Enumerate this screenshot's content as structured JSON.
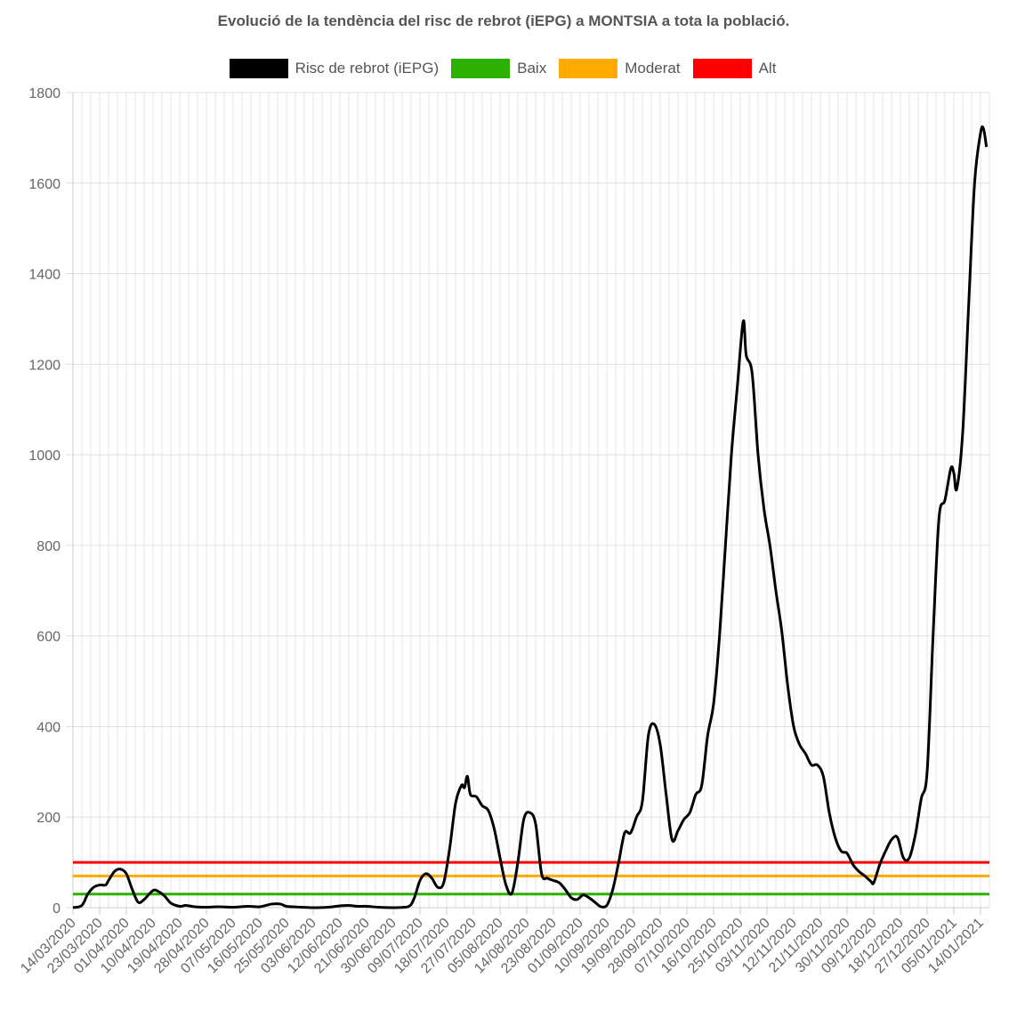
{
  "chart_data": {
    "type": "line",
    "title": "Evolució de la tendència del risc de rebrot (iEPG) a MONTSIA a tota la població.",
    "xlabel": "",
    "ylabel": "",
    "ylim": [
      0,
      1800
    ],
    "yticks": [
      0,
      200,
      400,
      600,
      800,
      1000,
      1200,
      1400,
      1600,
      1800
    ],
    "grid": true,
    "legend_position": "top",
    "x_start": "14/03/2020",
    "x_end": "17/01/2021",
    "xticks": [
      "14/03/2020",
      "23/03/2020",
      "01/04/2020",
      "10/04/2020",
      "19/04/2020",
      "28/04/2020",
      "07/05/2020",
      "16/05/2020",
      "25/05/2020",
      "03/06/2020",
      "12/06/2020",
      "21/06/2020",
      "30/06/2020",
      "09/07/2020",
      "18/07/2020",
      "27/07/2020",
      "05/08/2020",
      "14/08/2020",
      "23/08/2020",
      "01/09/2020",
      "10/09/2020",
      "19/09/2020",
      "28/09/2020",
      "07/10/2020",
      "16/10/2020",
      "25/10/2020",
      "03/11/2020",
      "12/11/2020",
      "21/11/2020",
      "30/11/2020",
      "09/12/2020",
      "18/12/2020",
      "27/12/2020",
      "05/01/2021",
      "14/01/2021"
    ],
    "series": [
      {
        "name": "Risc de rebrot (iEPG)",
        "color": "#000000",
        "points": [
          [
            "14/03/2020",
            0
          ],
          [
            "17/03/2020",
            5
          ],
          [
            "19/03/2020",
            30
          ],
          [
            "21/03/2020",
            45
          ],
          [
            "23/03/2020",
            50
          ],
          [
            "25/03/2020",
            50
          ],
          [
            "26/03/2020",
            60
          ],
          [
            "28/03/2020",
            80
          ],
          [
            "30/03/2020",
            85
          ],
          [
            "01/04/2020",
            75
          ],
          [
            "03/04/2020",
            40
          ],
          [
            "05/04/2020",
            12
          ],
          [
            "07/04/2020",
            18
          ],
          [
            "10/04/2020",
            38
          ],
          [
            "12/04/2020",
            35
          ],
          [
            "14/04/2020",
            25
          ],
          [
            "16/04/2020",
            10
          ],
          [
            "19/04/2020",
            3
          ],
          [
            "21/04/2020",
            5
          ],
          [
            "24/04/2020",
            2
          ],
          [
            "28/04/2020",
            1
          ],
          [
            "02/05/2020",
            2
          ],
          [
            "07/05/2020",
            1
          ],
          [
            "12/05/2020",
            3
          ],
          [
            "16/05/2020",
            2
          ],
          [
            "20/05/2020",
            8
          ],
          [
            "23/05/2020",
            8
          ],
          [
            "25/05/2020",
            3
          ],
          [
            "30/05/2020",
            1
          ],
          [
            "03/06/2020",
            0
          ],
          [
            "08/06/2020",
            1
          ],
          [
            "12/06/2020",
            4
          ],
          [
            "15/06/2020",
            5
          ],
          [
            "18/06/2020",
            3
          ],
          [
            "21/06/2020",
            3
          ],
          [
            "25/06/2020",
            1
          ],
          [
            "30/06/2020",
            0
          ],
          [
            "05/07/2020",
            2
          ],
          [
            "07/07/2020",
            20
          ],
          [
            "09/07/2020",
            60
          ],
          [
            "11/07/2020",
            75
          ],
          [
            "13/07/2020",
            65
          ],
          [
            "15/07/2020",
            45
          ],
          [
            "17/07/2020",
            55
          ],
          [
            "19/07/2020",
            130
          ],
          [
            "21/07/2020",
            230
          ],
          [
            "23/07/2020",
            270
          ],
          [
            "24/07/2020",
            265
          ],
          [
            "25/07/2020",
            290
          ],
          [
            "26/07/2020",
            250
          ],
          [
            "28/07/2020",
            245
          ],
          [
            "30/07/2020",
            225
          ],
          [
            "01/08/2020",
            215
          ],
          [
            "03/08/2020",
            175
          ],
          [
            "05/08/2020",
            110
          ],
          [
            "07/08/2020",
            50
          ],
          [
            "09/08/2020",
            32
          ],
          [
            "11/08/2020",
            100
          ],
          [
            "13/08/2020",
            195
          ],
          [
            "15/08/2020",
            210
          ],
          [
            "17/08/2020",
            185
          ],
          [
            "19/08/2020",
            75
          ],
          [
            "21/08/2020",
            65
          ],
          [
            "23/08/2020",
            60
          ],
          [
            "25/08/2020",
            55
          ],
          [
            "27/08/2020",
            40
          ],
          [
            "29/08/2020",
            22
          ],
          [
            "31/08/2020",
            18
          ],
          [
            "02/09/2020",
            28
          ],
          [
            "04/09/2020",
            22
          ],
          [
            "06/09/2020",
            12
          ],
          [
            "08/09/2020",
            2
          ],
          [
            "10/09/2020",
            5
          ],
          [
            "12/09/2020",
            40
          ],
          [
            "14/09/2020",
            100
          ],
          [
            "16/09/2020",
            165
          ],
          [
            "18/09/2020",
            165
          ],
          [
            "20/09/2020",
            200
          ],
          [
            "22/09/2020",
            235
          ],
          [
            "24/09/2020",
            380
          ],
          [
            "26/09/2020",
            405
          ],
          [
            "28/09/2020",
            360
          ],
          [
            "30/09/2020",
            250
          ],
          [
            "02/10/2020",
            150
          ],
          [
            "04/10/2020",
            170
          ],
          [
            "06/10/2020",
            195
          ],
          [
            "08/10/2020",
            210
          ],
          [
            "10/10/2020",
            250
          ],
          [
            "12/10/2020",
            270
          ],
          [
            "14/10/2020",
            380
          ],
          [
            "16/10/2020",
            450
          ],
          [
            "18/10/2020",
            600
          ],
          [
            "20/10/2020",
            800
          ],
          [
            "22/10/2020",
            1000
          ],
          [
            "24/10/2020",
            1150
          ],
          [
            "26/10/2020",
            1295
          ],
          [
            "27/10/2020",
            1220
          ],
          [
            "29/10/2020",
            1180
          ],
          [
            "31/10/2020",
            1000
          ],
          [
            "02/11/2020",
            880
          ],
          [
            "04/11/2020",
            800
          ],
          [
            "06/11/2020",
            700
          ],
          [
            "08/11/2020",
            610
          ],
          [
            "10/11/2020",
            490
          ],
          [
            "12/11/2020",
            400
          ],
          [
            "14/11/2020",
            360
          ],
          [
            "16/11/2020",
            340
          ],
          [
            "18/11/2020",
            315
          ],
          [
            "20/11/2020",
            315
          ],
          [
            "22/11/2020",
            290
          ],
          [
            "24/11/2020",
            210
          ],
          [
            "26/11/2020",
            155
          ],
          [
            "28/11/2020",
            125
          ],
          [
            "30/11/2020",
            120
          ],
          [
            "02/12/2020",
            95
          ],
          [
            "04/12/2020",
            80
          ],
          [
            "06/12/2020",
            70
          ],
          [
            "08/12/2020",
            58
          ],
          [
            "09/12/2020",
            55
          ],
          [
            "11/12/2020",
            95
          ],
          [
            "13/12/2020",
            125
          ],
          [
            "15/12/2020",
            150
          ],
          [
            "17/12/2020",
            155
          ],
          [
            "19/12/2020",
            110
          ],
          [
            "21/12/2020",
            110
          ],
          [
            "23/12/2020",
            160
          ],
          [
            "25/12/2020",
            240
          ],
          [
            "27/12/2020",
            300
          ],
          [
            "29/12/2020",
            600
          ],
          [
            "31/12/2020",
            860
          ],
          [
            "02/01/2021",
            900
          ],
          [
            "04/01/2021",
            970
          ],
          [
            "05/01/2021",
            960
          ],
          [
            "06/01/2021",
            925
          ],
          [
            "08/01/2021",
            1050
          ],
          [
            "10/01/2021",
            1330
          ],
          [
            "12/01/2021",
            1600
          ],
          [
            "14/01/2021",
            1710
          ],
          [
            "15/01/2021",
            1720
          ],
          [
            "16/01/2021",
            1680
          ]
        ]
      },
      {
        "name": "Baix",
        "color": "#2eb000",
        "value": 30
      },
      {
        "name": "Moderat",
        "color": "#ffaa00",
        "value": 70
      },
      {
        "name": "Alt",
        "color": "#ff0000",
        "value": 100
      }
    ]
  }
}
